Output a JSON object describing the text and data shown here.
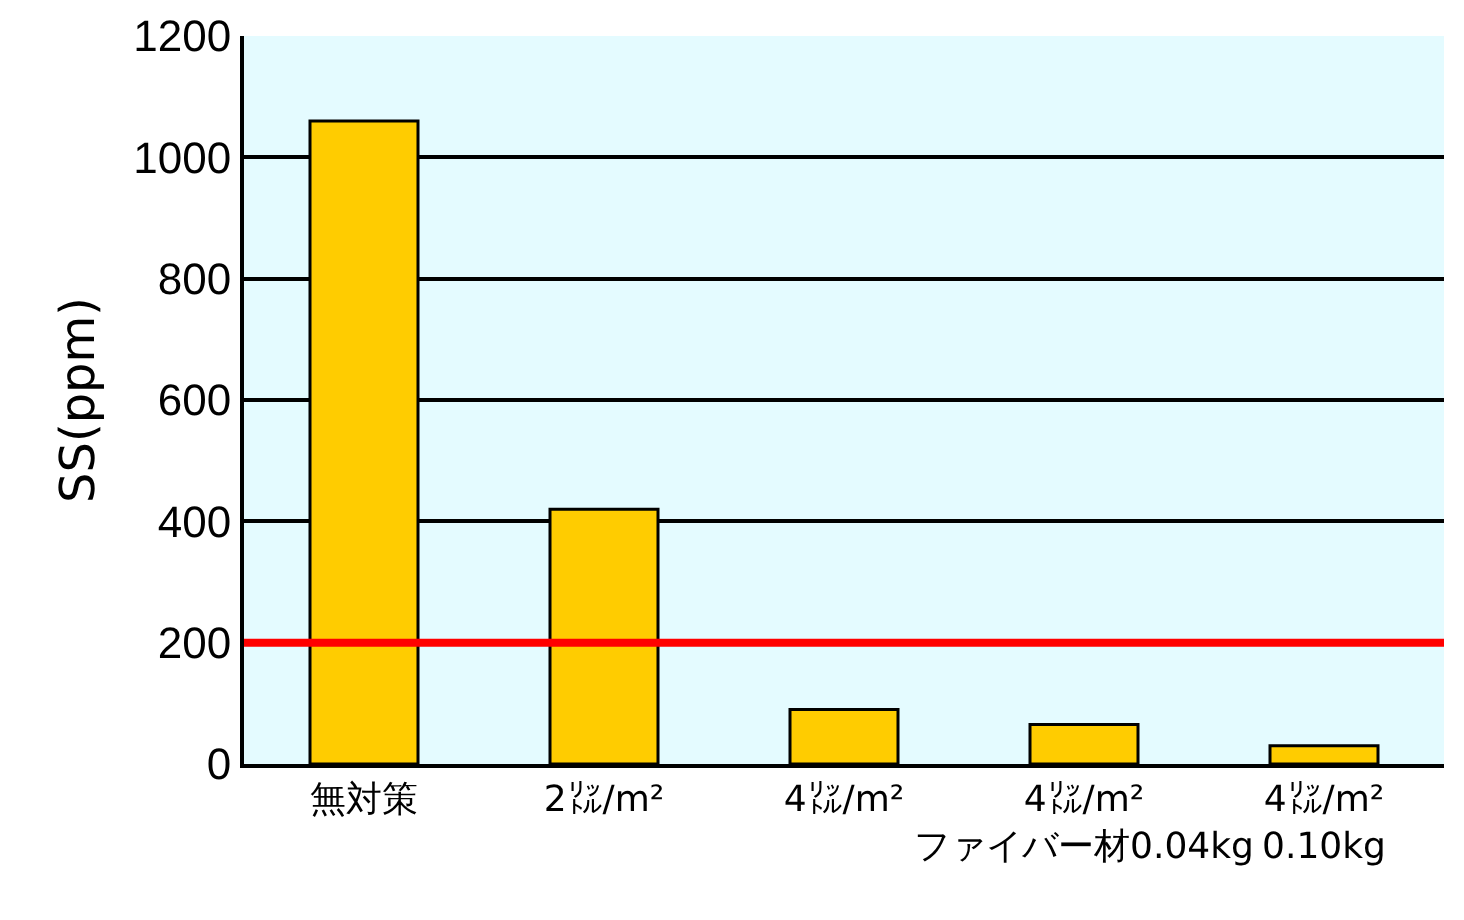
{
  "chart_data": {
    "type": "bar",
    "ylabel": "SS(ppm)",
    "categories": [
      "無対策",
      "2㍑/m²",
      "4㍑/m²",
      "4㍑/m²\nファイバー材0.04kg",
      "4㍑/m²\n0.10kg"
    ],
    "values": [
      1060,
      420,
      90,
      65,
      30
    ],
    "color": "#ffcc00",
    "ylim": [
      0,
      1200
    ],
    "yticks": [
      0,
      200,
      400,
      600,
      800,
      1000,
      1200
    ],
    "grid": "y",
    "ref_lines": [
      {
        "axis": "y",
        "value": 200,
        "color": "#ff0000"
      }
    ]
  }
}
